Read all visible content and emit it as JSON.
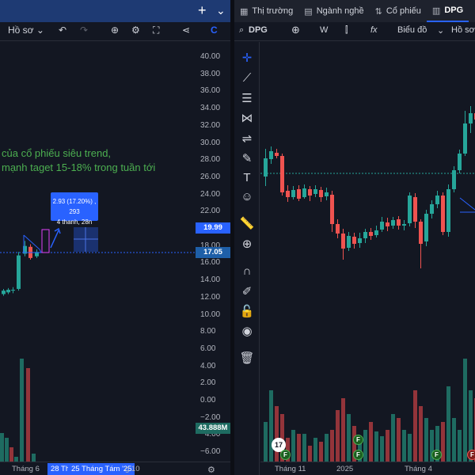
{
  "left_window": {
    "toolbar": {
      "menu_label": "Hồ sơ",
      "undo_icon": "undo-icon",
      "redo_icon": "redo-icon"
    },
    "annotation": {
      "line1": "của cổ phiếu siêu trend,",
      "line2": "mạnh taget 15-18% trong tuần tới"
    },
    "measure_tooltip": {
      "line1": "2.93 (17.20%) , 293",
      "line2": "4 thanh, 28n"
    },
    "price_axis": [
      "40.00",
      "38.00",
      "36.00",
      "34.00",
      "32.00",
      "30.00",
      "28.00",
      "26.00",
      "24.00",
      "22.00",
      "20.00",
      "18.00",
      "16.00",
      "14.00",
      "12.00",
      "10.00",
      "8.00",
      "6.00",
      "4.00",
      "2.00",
      "0.00",
      "−2.00",
      "−4.00",
      "−6.00"
    ],
    "price_badges": {
      "target": "19.99",
      "current": "17.05",
      "volume": "43.888M"
    },
    "time_axis": {
      "month": "Tháng 6",
      "highlight": "28 Th",
      "highlight2": "25 Tháng Tám '25",
      "month2": "g 10"
    }
  },
  "right_window": {
    "tabs": [
      {
        "icon": "grid-icon",
        "label": "Thị trường"
      },
      {
        "icon": "list-icon",
        "label": "Ngành nghề"
      },
      {
        "icon": "arrows-icon",
        "label": "Cổ phiếu"
      },
      {
        "icon": "chart-icon",
        "label": "DPG"
      }
    ],
    "toolbar": {
      "symbol": "DPG",
      "interval": "W",
      "chart_type_label": "Biểu đồ",
      "menu_label": "Hồ sơ"
    },
    "time_axis": [
      "Tháng 11",
      "2025",
      "Tháng 4"
    ],
    "tv_logo": "17"
  },
  "colors": {
    "up": "#26a69a",
    "down": "#ef5350",
    "vol_up": "#1e6b61",
    "vol_down": "#93343a",
    "accent": "#2962ff",
    "annotation": "#4caf50",
    "background": "#131722"
  }
}
